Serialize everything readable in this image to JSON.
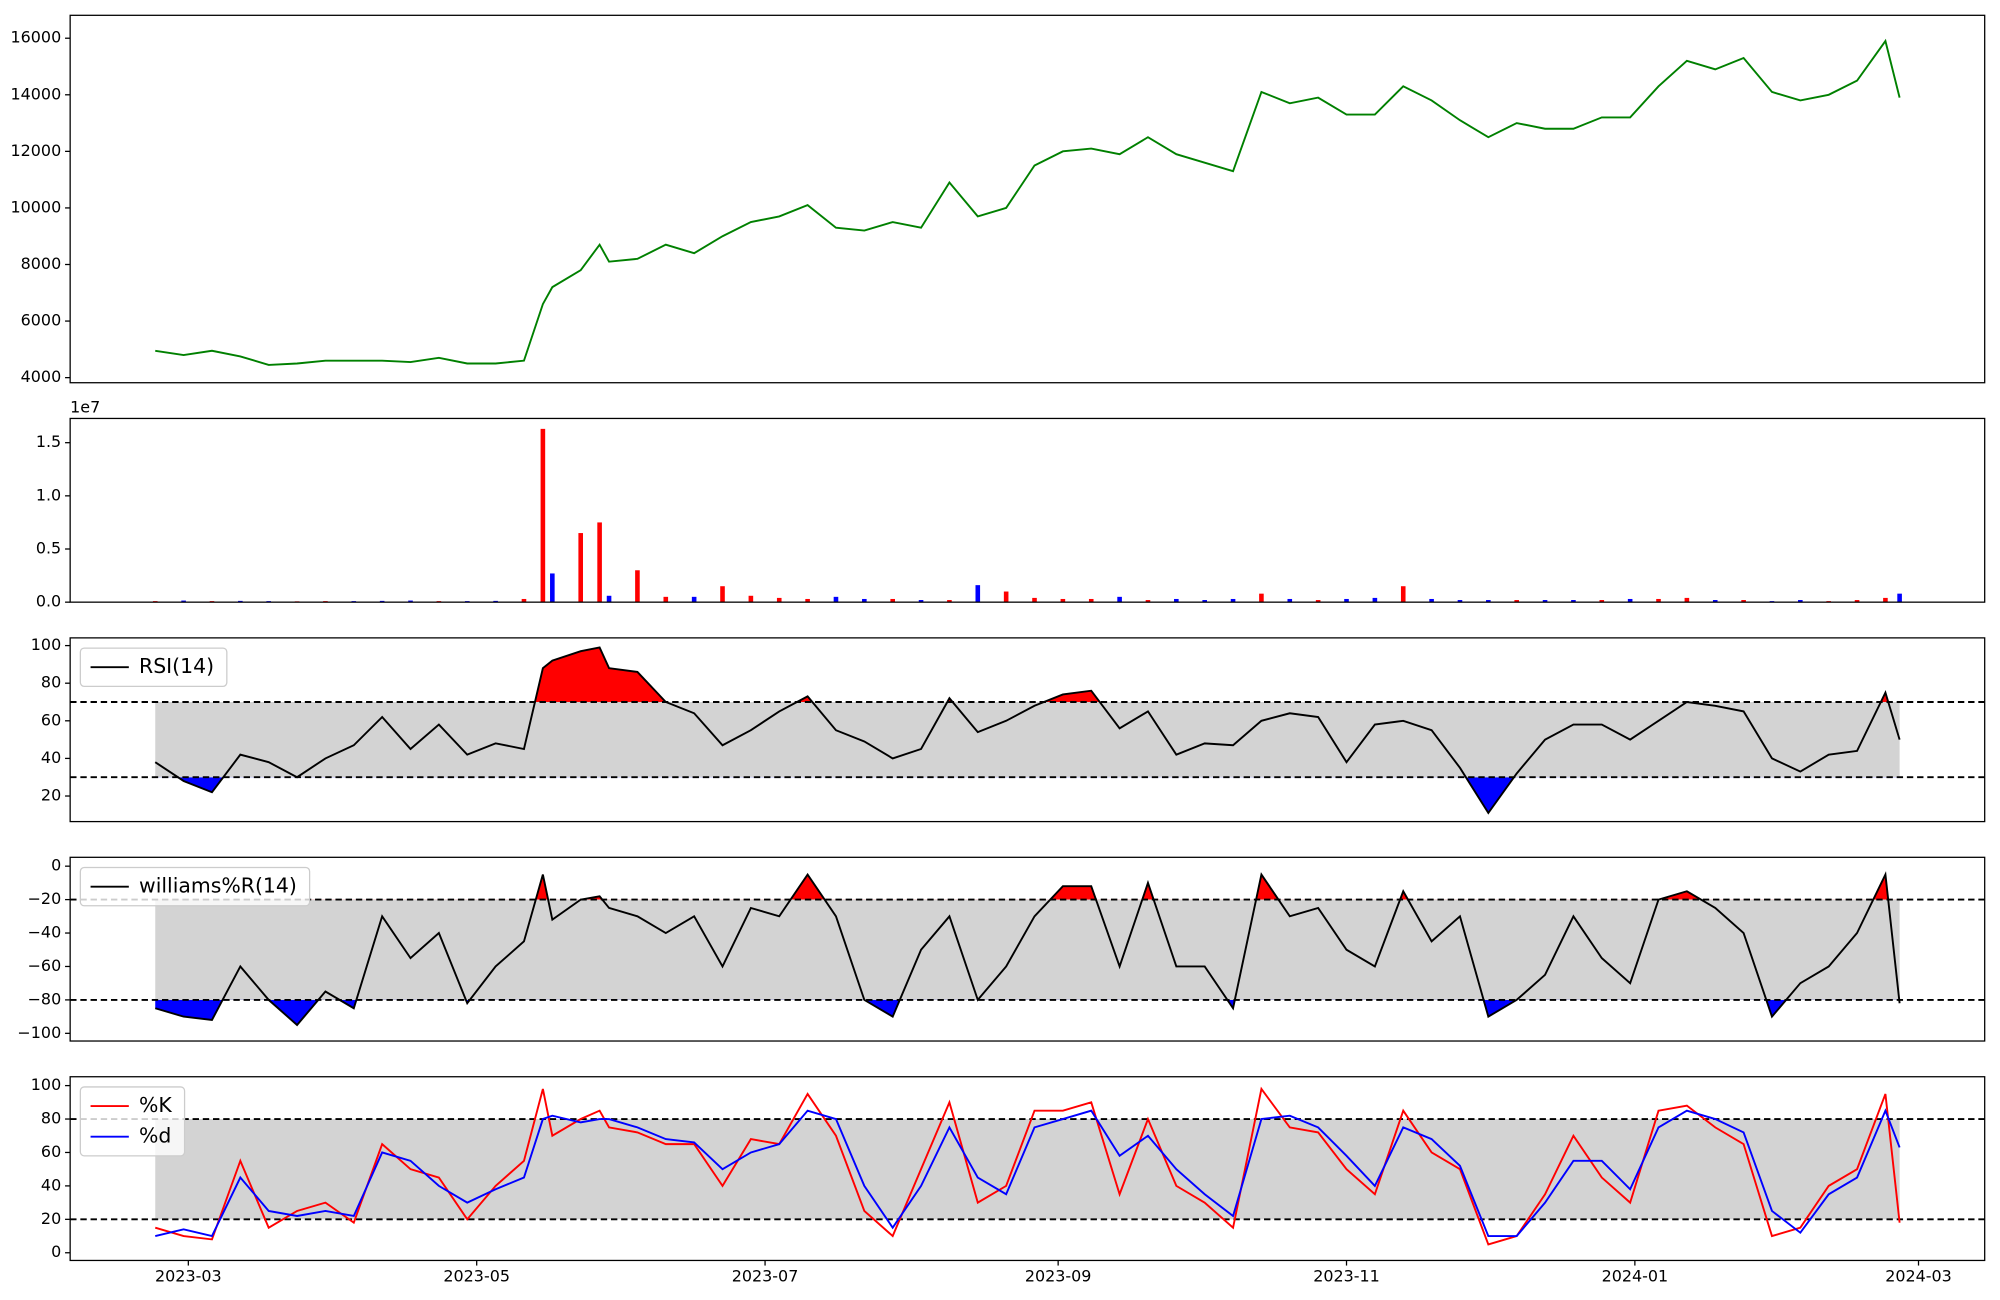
{
  "chart_data": [
    {
      "type": "line",
      "color": "green",
      "x": [
        52,
        58,
        64,
        70,
        76,
        82,
        88,
        94,
        100,
        106,
        112,
        118,
        124,
        130,
        134,
        136,
        142,
        146,
        148,
        154,
        160,
        166,
        172,
        178,
        184,
        190,
        196,
        202,
        208,
        214,
        220,
        226,
        232,
        238,
        244,
        250,
        256,
        262,
        268,
        274,
        280,
        286,
        292,
        298,
        304,
        310,
        316,
        322,
        328,
        334,
        340,
        346,
        352,
        358,
        364,
        370,
        376,
        382,
        388,
        394,
        400,
        406,
        412,
        418,
        421
      ],
      "values": [
        4950,
        4800,
        4950,
        4750,
        4450,
        4500,
        4600,
        4600,
        4600,
        4550,
        4700,
        4500,
        4500,
        4600,
        6600,
        7200,
        7800,
        8700,
        8100,
        8200,
        8700,
        8400,
        9000,
        9500,
        9700,
        10100,
        9300,
        9200,
        9500,
        9300,
        10900,
        9700,
        10000,
        11500,
        12000,
        12100,
        11900,
        12500,
        11900,
        11600,
        11300,
        14100,
        13700,
        13900,
        13300,
        13300,
        14300,
        13800,
        13100,
        12500,
        13000,
        12800,
        12800,
        13200,
        13200,
        14300,
        15200,
        14900,
        15300,
        14100,
        13800,
        14000,
        14500,
        15900,
        13900
      ],
      "xlim": [
        34,
        439
      ],
      "ylim": [
        3820,
        16810
      ],
      "yticks": [
        4000,
        6000,
        8000,
        10000,
        12000,
        14000,
        16000
      ]
    },
    {
      "type": "bar",
      "offset_label": "1e7",
      "x": [
        52,
        58,
        64,
        70,
        76,
        82,
        88,
        94,
        100,
        106,
        112,
        118,
        124,
        130,
        134,
        136,
        142,
        146,
        148,
        154,
        160,
        166,
        172,
        178,
        184,
        190,
        196,
        202,
        208,
        214,
        220,
        226,
        232,
        238,
        244,
        250,
        256,
        262,
        268,
        274,
        280,
        286,
        292,
        298,
        304,
        310,
        316,
        322,
        328,
        334,
        340,
        346,
        352,
        358,
        364,
        370,
        376,
        382,
        388,
        394,
        400,
        406,
        412,
        418,
        421
      ],
      "values": [
        100000,
        150000,
        100000,
        120000,
        100000,
        80000,
        100000,
        100000,
        120000,
        150000,
        100000,
        100000,
        120000,
        300000,
        16300000,
        2700000,
        6500000,
        7500000,
        600000,
        3000000,
        500000,
        500000,
        1500000,
        600000,
        400000,
        300000,
        500000,
        300000,
        300000,
        200000,
        200000,
        1600000,
        1000000,
        400000,
        300000,
        300000,
        500000,
        200000,
        300000,
        200000,
        300000,
        800000,
        300000,
        200000,
        300000,
        400000,
        1500000,
        300000,
        200000,
        200000,
        200000,
        200000,
        200000,
        200000,
        300000,
        300000,
        400000,
        200000,
        200000,
        100000,
        200000,
        100000,
        200000,
        400000,
        800000
      ],
      "colors": [
        "red",
        "blue",
        "red",
        "blue",
        "blue",
        "red",
        "red",
        "blue",
        "blue",
        "blue",
        "red",
        "blue",
        "blue",
        "red",
        "red",
        "blue",
        "red",
        "red",
        "blue",
        "red",
        "red",
        "blue",
        "red",
        "red",
        "red",
        "red",
        "blue",
        "blue",
        "red",
        "blue",
        "red",
        "blue",
        "red",
        "red",
        "red",
        "red",
        "blue",
        "red",
        "blue",
        "blue",
        "blue",
        "red",
        "blue",
        "red",
        "blue",
        "blue",
        "red",
        "blue",
        "blue",
        "blue",
        "red",
        "blue",
        "blue",
        "red",
        "blue",
        "red",
        "red",
        "blue",
        "red",
        "blue",
        "blue",
        "red",
        "red",
        "red",
        "blue"
      ],
      "xlim": [
        34,
        439
      ],
      "ylim": [
        0,
        17280000
      ],
      "yticks": [
        {
          "value": 0,
          "label": "0.0"
        },
        {
          "value": 5000000,
          "label": "0.5"
        },
        {
          "value": 10000000,
          "label": "1.0"
        },
        {
          "value": 15000000,
          "label": "1.5"
        }
      ]
    },
    {
      "type": "line",
      "x": [
        52,
        58,
        64,
        70,
        76,
        82,
        88,
        94,
        100,
        106,
        112,
        118,
        124,
        130,
        134,
        136,
        142,
        146,
        148,
        154,
        160,
        166,
        172,
        178,
        184,
        190,
        196,
        202,
        208,
        214,
        220,
        226,
        232,
        238,
        244,
        250,
        256,
        262,
        268,
        274,
        280,
        286,
        292,
        298,
        304,
        310,
        316,
        322,
        328,
        334,
        340,
        346,
        352,
        358,
        364,
        370,
        376,
        382,
        388,
        394,
        400,
        406,
        412,
        418,
        421
      ],
      "series": [
        {
          "name": "RSI(14)",
          "color": "black",
          "values": [
            38,
            28,
            22,
            42,
            38,
            30,
            40,
            47,
            62,
            45,
            58,
            42,
            48,
            45,
            88,
            92,
            97,
            99,
            88,
            86,
            70,
            64,
            47,
            55,
            65,
            73,
            55,
            49,
            40,
            45,
            72,
            54,
            60,
            68,
            74,
            76,
            56,
            65,
            42,
            48,
            47,
            60,
            64,
            62,
            38,
            58,
            60,
            55,
            35,
            11,
            32,
            50,
            58,
            58,
            50,
            60,
            70,
            68,
            65,
            40,
            33,
            42,
            44,
            75,
            50
          ]
        }
      ],
      "thresholds": [
        70,
        30
      ],
      "band_color": "lightgray",
      "above_color": "red",
      "below_color": "blue",
      "legend": "upper left",
      "xlim": [
        34,
        439
      ],
      "ylim": [
        6.4,
        104.1
      ],
      "yticks": [
        20,
        40,
        60,
        80,
        100
      ]
    },
    {
      "type": "line",
      "x": [
        52,
        58,
        64,
        70,
        76,
        82,
        88,
        94,
        100,
        106,
        112,
        118,
        124,
        130,
        134,
        136,
        142,
        146,
        148,
        154,
        160,
        166,
        172,
        178,
        184,
        190,
        196,
        202,
        208,
        214,
        220,
        226,
        232,
        238,
        244,
        250,
        256,
        262,
        268,
        274,
        280,
        286,
        292,
        298,
        304,
        310,
        316,
        322,
        328,
        334,
        340,
        346,
        352,
        358,
        364,
        370,
        376,
        382,
        388,
        394,
        400,
        406,
        412,
        418,
        421
      ],
      "series": [
        {
          "name": "williams%R(14)",
          "color": "black",
          "values": [
            -85,
            -90,
            -92,
            -60,
            -80,
            -95,
            -75,
            -85,
            -30,
            -55,
            -40,
            -82,
            -60,
            -45,
            -5,
            -32,
            -20,
            -18,
            -25,
            -30,
            -40,
            -30,
            -60,
            -25,
            -30,
            -5,
            -30,
            -80,
            -90,
            -50,
            -30,
            -80,
            -60,
            -30,
            -12,
            -12,
            -60,
            -10,
            -60,
            -60,
            -85,
            -5,
            -30,
            -25,
            -50,
            -60,
            -15,
            -45,
            -30,
            -90,
            -80,
            -65,
            -30,
            -55,
            -70,
            -20,
            -15,
            -25,
            -40,
            -90,
            -70,
            -60,
            -40,
            -5,
            -82
          ]
        }
      ],
      "thresholds": [
        -20,
        -80
      ],
      "band_color": "lightgray",
      "above_color": "red",
      "below_color": "blue",
      "legend": "upper left",
      "xlim": [
        34,
        439
      ],
      "ylim": [
        -104.6,
        5.3
      ],
      "yticks": [
        {
          "value": -100,
          "label": "−100"
        },
        {
          "value": -80,
          "label": "−80"
        },
        {
          "value": -60,
          "label": "−60"
        },
        {
          "value": -40,
          "label": "−40"
        },
        {
          "value": -20,
          "label": "−20"
        },
        0
      ]
    },
    {
      "type": "line",
      "x": [
        52,
        58,
        64,
        70,
        76,
        82,
        88,
        94,
        100,
        106,
        112,
        118,
        124,
        130,
        134,
        136,
        142,
        146,
        148,
        154,
        160,
        166,
        172,
        178,
        184,
        190,
        196,
        202,
        208,
        214,
        220,
        226,
        232,
        238,
        244,
        250,
        256,
        262,
        268,
        274,
        280,
        286,
        292,
        298,
        304,
        310,
        316,
        322,
        328,
        334,
        340,
        346,
        352,
        358,
        364,
        370,
        376,
        382,
        388,
        394,
        400,
        406,
        412,
        418,
        421
      ],
      "series": [
        {
          "name": "%K",
          "color": "red",
          "values": [
            15,
            10,
            8,
            55,
            15,
            25,
            30,
            18,
            65,
            50,
            45,
            20,
            40,
            55,
            98,
            70,
            80,
            85,
            75,
            72,
            65,
            65,
            40,
            68,
            65,
            95,
            70,
            25,
            10,
            50,
            90,
            30,
            40,
            85,
            85,
            90,
            35,
            80,
            40,
            30,
            15,
            98,
            75,
            72,
            50,
            35,
            85,
            60,
            50,
            5,
            10,
            35,
            70,
            45,
            30,
            85,
            88,
            75,
            65,
            10,
            15,
            40,
            50,
            95,
            18
          ]
        },
        {
          "name": "%d",
          "color": "blue",
          "values": [
            10,
            14,
            10,
            45,
            25,
            22,
            25,
            22,
            60,
            55,
            40,
            30,
            38,
            45,
            80,
            82,
            78,
            80,
            80,
            75,
            68,
            66,
            50,
            60,
            65,
            85,
            80,
            40,
            15,
            40,
            75,
            45,
            35,
            75,
            80,
            85,
            58,
            70,
            50,
            35,
            22,
            80,
            82,
            75,
            58,
            40,
            75,
            68,
            52,
            10,
            10,
            30,
            55,
            55,
            38,
            75,
            85,
            80,
            72,
            25,
            12,
            35,
            45,
            85,
            63
          ]
        }
      ],
      "thresholds": [
        80,
        20
      ],
      "band_color": "lightgray",
      "legend": "upper left",
      "xlim": [
        34,
        439
      ],
      "ylim": [
        -4.6,
        105.3
      ],
      "yticks": [
        0,
        20,
        40,
        60,
        80,
        100
      ],
      "xticks": [
        {
          "value": 59,
          "label": "2023-03"
        },
        {
          "value": 120,
          "label": "2023-05"
        },
        {
          "value": 181,
          "label": "2023-07"
        },
        {
          "value": 243,
          "label": "2023-09"
        },
        {
          "value": 304,
          "label": "2023-11"
        },
        {
          "value": 365,
          "label": "2024-01"
        },
        {
          "value": 425,
          "label": "2024-03"
        }
      ]
    }
  ]
}
